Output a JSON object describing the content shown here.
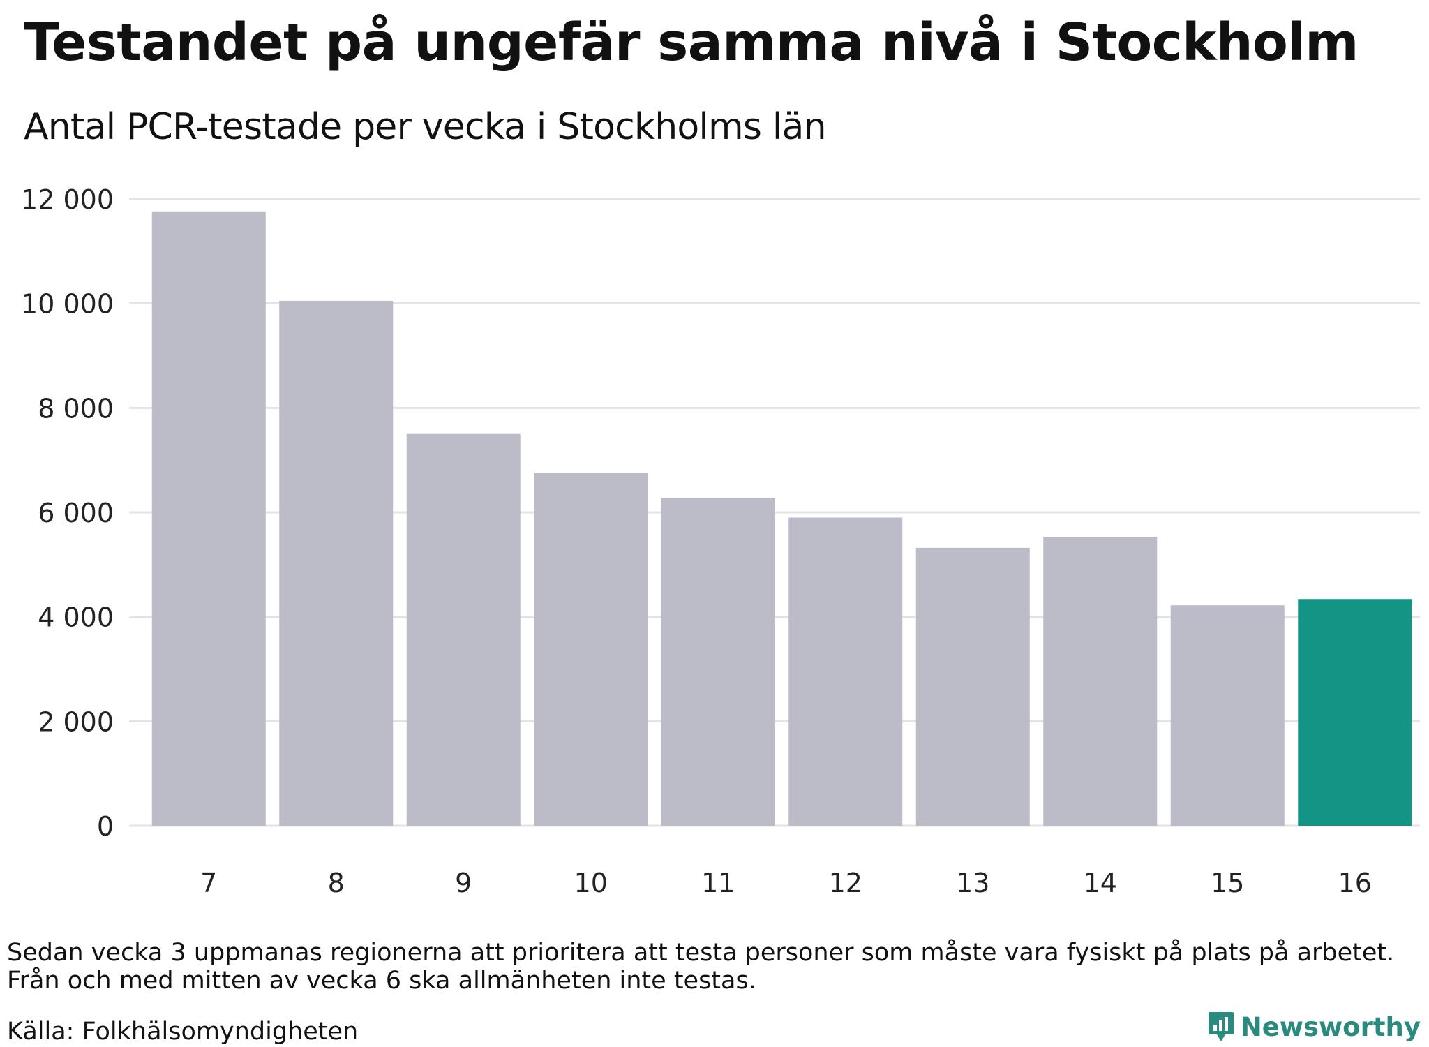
{
  "title": "Testandet på ungefär samma nivå i Stockholm",
  "subtitle": "Antal PCR-testade per vecka i Stockholms län",
  "note_lines": [
    "Sedan vecka 3 uppmanas regionerna att prioritera att testa personer som måste vara fysiskt på plats på arbetet.",
    "Från och med mitten av vecka 6 ska allmänheten inte testas."
  ],
  "source": "Källa: Folkhälsomyndigheten",
  "brand": {
    "name": "Newsworthy",
    "icon": "newsworthy-logo-icon"
  },
  "colors": {
    "bar": "#bcbbc8",
    "highlight": "#149485",
    "grid": "#e3e3e6",
    "brand": "#2b8a7e"
  },
  "chart_data": {
    "type": "bar",
    "title": "Testandet på ungefär samma nivå i Stockholm",
    "subtitle": "Antal PCR-testade per vecka i Stockholms län",
    "xlabel": "",
    "ylabel": "",
    "categories": [
      "7",
      "8",
      "9",
      "10",
      "11",
      "12",
      "13",
      "14",
      "15",
      "16"
    ],
    "values": [
      11750,
      10050,
      7500,
      6750,
      6280,
      5900,
      5320,
      5530,
      4220,
      4340
    ],
    "highlight_index": 9,
    "ylim": [
      0,
      12000
    ],
    "yticks": [
      0,
      2000,
      4000,
      6000,
      8000,
      10000,
      12000
    ],
    "ytick_labels": [
      "0",
      "2 000",
      "4 000",
      "6 000",
      "8 000",
      "10 000",
      "12 000"
    ],
    "grid": true,
    "legend": "none"
  }
}
